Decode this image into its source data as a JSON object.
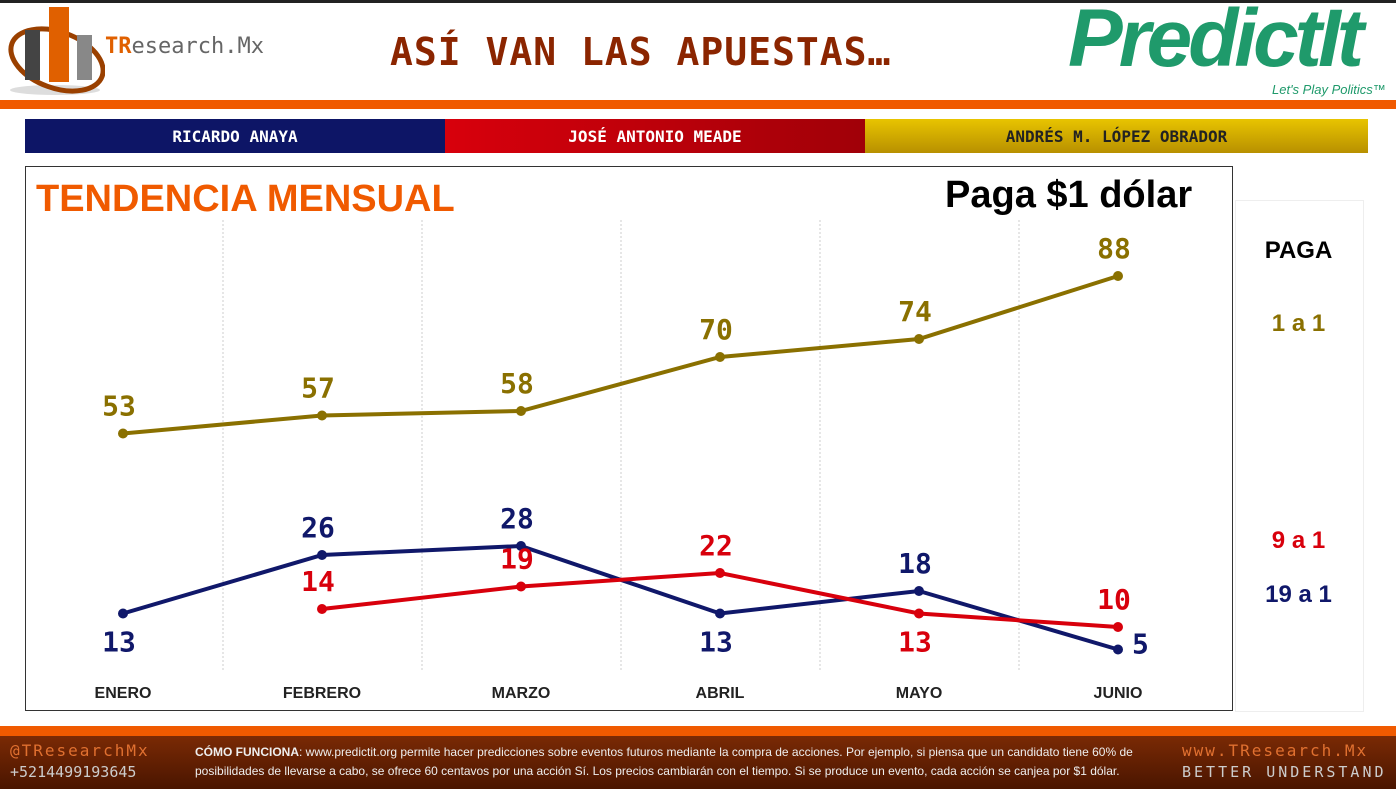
{
  "header": {
    "title": "ASÍ VAN LAS APUESTAS…",
    "logo_left": "TResearch.Mx",
    "logo_right": "PredictIt",
    "logo_right_tagline": "Let's Play Politics™"
  },
  "candidates": [
    {
      "name": "RICARDO ANAYA",
      "color": "#0d1566"
    },
    {
      "name": "JOSÉ ANTONIO MEADE",
      "color": "#d8000c"
    },
    {
      "name": "ANDRÉS M. LÓPEZ OBRADOR",
      "color": "#c9a800"
    }
  ],
  "chart_data": {
    "type": "line",
    "title": "TENDENCIA MENSUAL",
    "subtitle": "Paga $1 dólar",
    "categories": [
      "ENERO",
      "FEBRERO",
      "MARZO",
      "ABRIL",
      "MAYO",
      "JUNIO"
    ],
    "grid": "vertical",
    "ylim": [
      0,
      100
    ],
    "series": [
      {
        "values": [
          53,
          57,
          58,
          70,
          74,
          88
        ],
        "color": "#8a7000"
      },
      {
        "values": [
          13,
          26,
          28,
          13,
          18,
          5
        ],
        "color": "#10186a"
      },
      {
        "values": [
          null,
          14,
          19,
          22,
          13,
          10
        ],
        "color": "#d8000c"
      }
    ]
  },
  "payout": {
    "header": "PAGA",
    "rows": [
      {
        "text": "1 a 1",
        "color": "#8a7000"
      },
      {
        "text": "9 a 1",
        "color": "#d8000c"
      },
      {
        "text": "19 a 1",
        "color": "#10186a"
      }
    ]
  },
  "footer": {
    "handle": "@TResearchMx",
    "phone": "+5214499193645",
    "how_label": "CÓMO FUNCIONA",
    "how_text": ": www.predictit.org permite hacer predicciones sobre eventos futuros mediante la compra de acciones. Por ejemplo, si piensa que un candidato tiene 60% de posibilidades de llevarse a cabo, se ofrece 60 centavos por una acción Sí. Los precios cambiarán con el tiempo. Si se produce un evento, cada acción se canjea por $1 dólar.",
    "website": "www.TResearch.Mx",
    "tagline": "BETTER UNDERSTAND"
  }
}
